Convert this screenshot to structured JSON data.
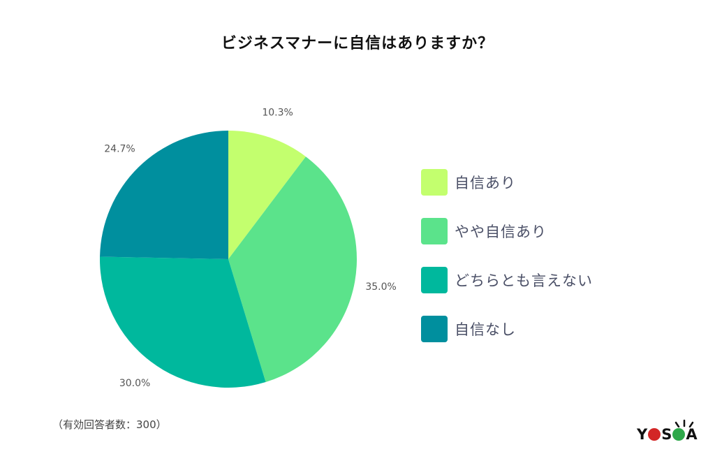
{
  "title": "ビジネスマナーに自信はありますか？",
  "footnote": "（有効回答者数：300）",
  "logo": {
    "text_parts": [
      "Y",
      "S",
      "A"
    ],
    "colors": {
      "o": "#d32626",
      "c": "#2ea84a"
    }
  },
  "chart_data": {
    "type": "pie",
    "title": "ビジネスマナーに自信はありますか？",
    "start_angle": "top, clockwise",
    "legend_position": "right",
    "slices": [
      {
        "label": "自信あり",
        "value": 10.3,
        "value_label": "10.3%",
        "color": "#c3ff6e"
      },
      {
        "label": "やや自信あり",
        "value": 35.0,
        "value_label": "35.0%",
        "color": "#5be38b"
      },
      {
        "label": "どちらとも言えない",
        "value": 30.0,
        "value_label": "30.0%",
        "color": "#00b89d"
      },
      {
        "label": "自信なし",
        "value": 24.7,
        "value_label": "24.7%",
        "color": "#008f9e"
      }
    ]
  }
}
